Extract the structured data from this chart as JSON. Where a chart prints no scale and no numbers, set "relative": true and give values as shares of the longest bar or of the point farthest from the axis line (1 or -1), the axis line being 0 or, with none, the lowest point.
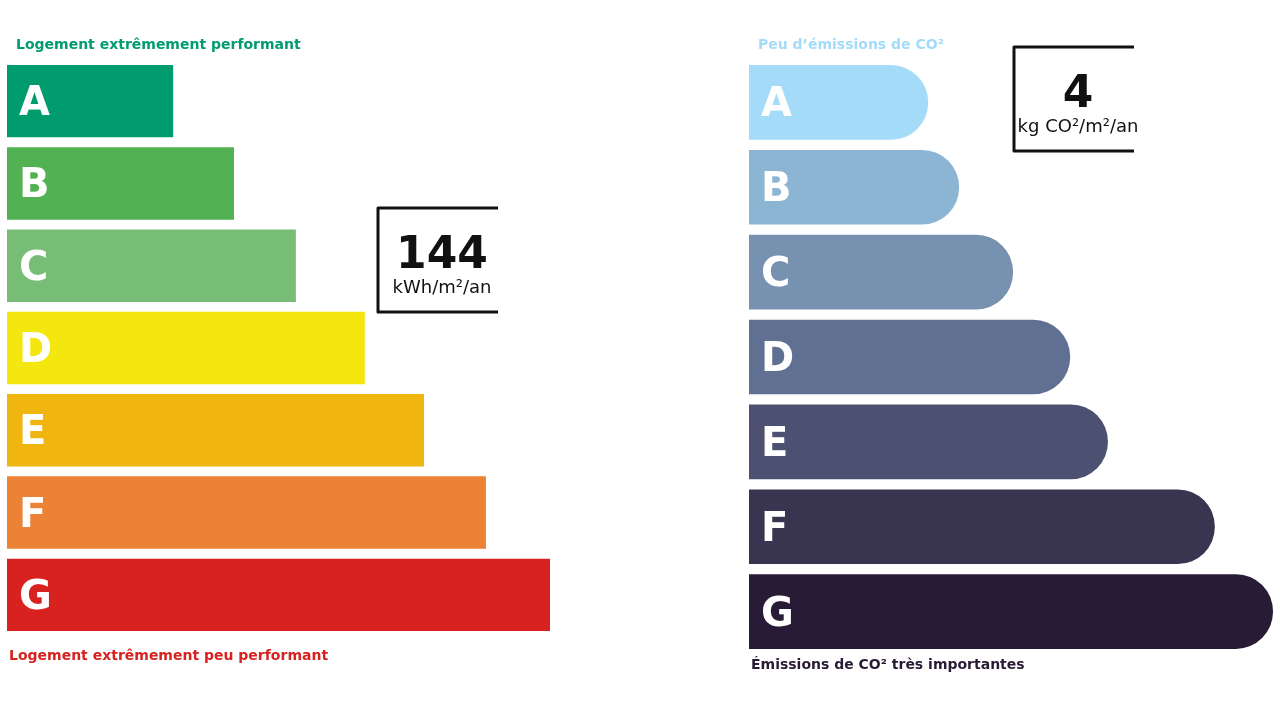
{
  "chart_data": [
    {
      "type": "bar",
      "orientation": "horizontal",
      "relative": true,
      "tick_labels": "y",
      "title": "Logement extrêmement performant",
      "categories": [
        "A",
        "B",
        "C",
        "D",
        "E",
        "F",
        "G"
      ],
      "values": [
        0.306,
        0.418,
        0.532,
        0.659,
        0.768,
        0.882,
        1
      ],
      "colors": [
        "#009c6d",
        "#52b153",
        "#78bd76",
        "#f4e70f",
        "#f0b50f",
        "#eb8235",
        "#d7221f"
      ],
      "annotations": [
        "Logement extrêmement peu performant",
        "144",
        "kWh/m²/an"
      ]
    },
    {
      "type": "bar",
      "orientation": "horizontal",
      "relative": true,
      "tick_labels": "y",
      "title": "Peu d’émissions de CO²",
      "categories": [
        "A",
        "B",
        "C",
        "D",
        "E",
        "F",
        "G"
      ],
      "values": [
        0.342,
        0.401,
        0.504,
        0.613,
        0.685,
        0.889,
        1
      ],
      "colors": [
        "#a4dbf8",
        "#8cb4d3",
        "#7792b1",
        "#5f7093",
        "#4d5171",
        "#393551",
        "#281b35"
      ],
      "annotations": [
        "Émissions de CO² très importantes",
        "4",
        "kg CO²/m²/an"
      ]
    }
  ]
}
